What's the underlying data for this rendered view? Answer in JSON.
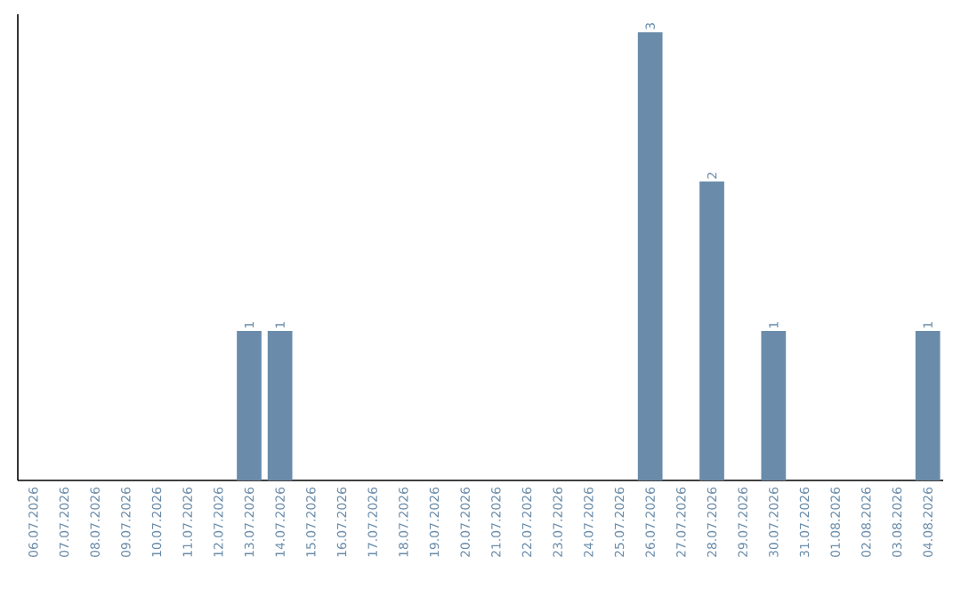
{
  "chart_data": {
    "type": "bar",
    "categories": [
      "06.07.2026",
      "07.07.2026",
      "08.07.2026",
      "09.07.2026",
      "10.07.2026",
      "11.07.2026",
      "12.07.2026",
      "13.07.2026",
      "14.07.2026",
      "15.07.2026",
      "16.07.2026",
      "17.07.2026",
      "18.07.2026",
      "19.07.2026",
      "20.07.2026",
      "21.07.2026",
      "22.07.2026",
      "23.07.2026",
      "24.07.2026",
      "25.07.2026",
      "26.07.2026",
      "27.07.2026",
      "28.07.2026",
      "29.07.2026",
      "30.07.2026",
      "31.07.2026",
      "01.08.2026",
      "02.08.2026",
      "03.08.2026",
      "04.08.2026"
    ],
    "values": [
      0,
      0,
      0,
      0,
      0,
      0,
      0,
      1,
      1,
      0,
      0,
      0,
      0,
      0,
      0,
      0,
      0,
      0,
      0,
      0,
      3,
      0,
      2,
      0,
      1,
      0,
      0,
      0,
      0,
      1
    ],
    "value_labels": [
      null,
      null,
      null,
      null,
      null,
      null,
      null,
      "1",
      "1",
      null,
      null,
      null,
      null,
      null,
      null,
      null,
      null,
      null,
      null,
      null,
      "3",
      null,
      "2",
      null,
      "1",
      null,
      null,
      null,
      null,
      "1"
    ],
    "color": "#6a8caa",
    "ylim": [
      0,
      3.12
    ],
    "tick_labels": "x"
  }
}
